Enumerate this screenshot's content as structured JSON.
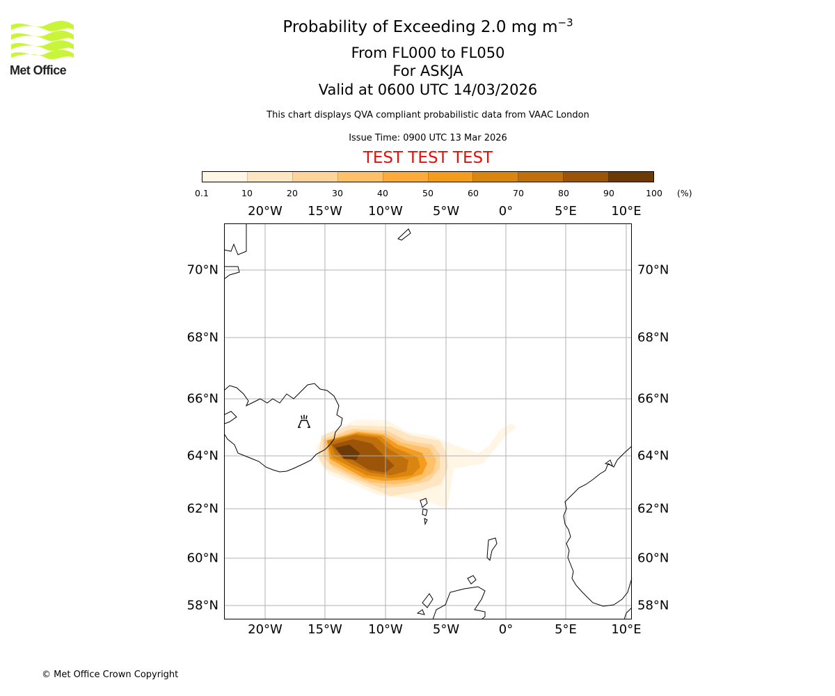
{
  "logo": {
    "icon": "met-office-wave-logo",
    "text": "Met Office",
    "color": "#c8f53a"
  },
  "header": {
    "title_main": "Probability of Exceeding 2.0 mg m",
    "title_superscript": "−3",
    "title_levels": "From FL000 to FL050",
    "title_volcano": "For ASKJA",
    "title_valid": "Valid at 0600 UTC 14/03/2026",
    "disclaimer": "This chart displays QVA compliant probabilistic data from VAAC London",
    "issue_time": "Issue Time: 0900 UTC 13 Mar 2026",
    "test_banner": "TEST TEST TEST",
    "test_color": "#e0120b"
  },
  "colorbar": {
    "ticks": [
      "0.1",
      "10",
      "20",
      "30",
      "40",
      "50",
      "60",
      "70",
      "80",
      "90",
      "100"
    ],
    "unit": "(%)",
    "colors": [
      "#fff6e6",
      "#ffe6c2",
      "#ffd49a",
      "#ffc06a",
      "#fbab3a",
      "#f39c1e",
      "#d98610",
      "#bf6f0c",
      "#9c5508",
      "#6b3a06"
    ]
  },
  "map": {
    "lon_labels": [
      "20°W",
      "15°W",
      "10°W",
      "5°W",
      "0°",
      "5°E",
      "10°E"
    ],
    "lat_labels": [
      "70°N",
      "68°N",
      "66°N",
      "64°N",
      "62°N",
      "60°N",
      "58°N"
    ],
    "volcano_icon": "volcano-icon",
    "grid": true
  },
  "footer": {
    "copyright": "© Met Office Crown Copyright"
  }
}
